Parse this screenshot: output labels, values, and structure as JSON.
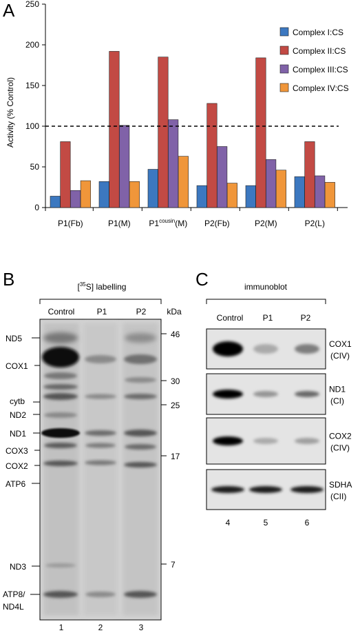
{
  "panels": {
    "a": "A",
    "b": "B",
    "c": "C"
  },
  "colors": {
    "complex_i": "#3c78c0",
    "complex_ii": "#c24a44",
    "complex_iii": "#8062a8",
    "complex_iv": "#f0963a",
    "dash_line": "#000000"
  },
  "chart_data": {
    "type": "bar",
    "ylabel": "Activity (% Control)",
    "ylim": [
      0,
      250
    ],
    "yticks": [
      0,
      50,
      100,
      150,
      200,
      250
    ],
    "reference_line": 100,
    "legend_position": "top-right",
    "categories": [
      "P1(Fb)",
      "P1(M)",
      "P1cousin(M)",
      "P2(Fb)",
      "P2(M)",
      "P2(L)"
    ],
    "category_labels": [
      {
        "main": "P1(Fb)",
        "sup": "",
        "tail": ""
      },
      {
        "main": "P1(M)",
        "sup": "",
        "tail": ""
      },
      {
        "main": "P1",
        "sup": "cousin",
        "tail": "(M)"
      },
      {
        "main": "P2(Fb)",
        "sup": "",
        "tail": ""
      },
      {
        "main": "P2(M)",
        "sup": "",
        "tail": ""
      },
      {
        "main": "P2(L)",
        "sup": "",
        "tail": ""
      }
    ],
    "series": [
      {
        "name": "Complex I:CS",
        "color": "#3c78c0",
        "values": [
          14,
          32,
          47,
          27,
          27,
          38
        ]
      },
      {
        "name": "Complex II:CS",
        "color": "#c24a44",
        "values": [
          81,
          192,
          185,
          128,
          184,
          81
        ]
      },
      {
        "name": "Complex III:CS",
        "color": "#8062a8",
        "values": [
          21,
          101,
          108,
          75,
          59,
          39
        ]
      },
      {
        "name": "Complex IV:CS",
        "color": "#f0963a",
        "values": [
          33,
          32,
          63,
          30,
          46,
          31
        ]
      }
    ]
  },
  "gel_b": {
    "title": "[35S] labelling",
    "title_main": "[",
    "title_sup": "35",
    "title_rest": "S] labelling",
    "lanes": [
      "Control",
      "P1",
      "P2"
    ],
    "lane_numbers": [
      "1",
      "2",
      "3"
    ],
    "kda_label": "kDa",
    "markers": [
      "46",
      "30",
      "25",
      "17",
      "7"
    ],
    "band_labels": [
      "ND5",
      "COX1",
      "cytb",
      "ND2",
      "ND1",
      "COX3",
      "COX2",
      "ATP6",
      "ND3",
      "ATP8/",
      "ND4L"
    ]
  },
  "blot_c": {
    "title": "immunoblot",
    "lanes": [
      "Control",
      "P1",
      "P2"
    ],
    "lane_numbers": [
      "4",
      "5",
      "6"
    ],
    "strips": [
      {
        "protein": "COX1",
        "complex": "(CIV)",
        "intensity": [
          1.0,
          0.25,
          0.45
        ]
      },
      {
        "protein": "ND1",
        "complex": "(CI)",
        "intensity": [
          1.0,
          0.35,
          0.55
        ]
      },
      {
        "protein": "COX2",
        "complex": "(CIV)",
        "intensity": [
          1.0,
          0.25,
          0.3
        ]
      },
      {
        "protein": "SDHA",
        "complex": "(CII)",
        "intensity": [
          0.9,
          0.9,
          0.9
        ]
      }
    ]
  }
}
